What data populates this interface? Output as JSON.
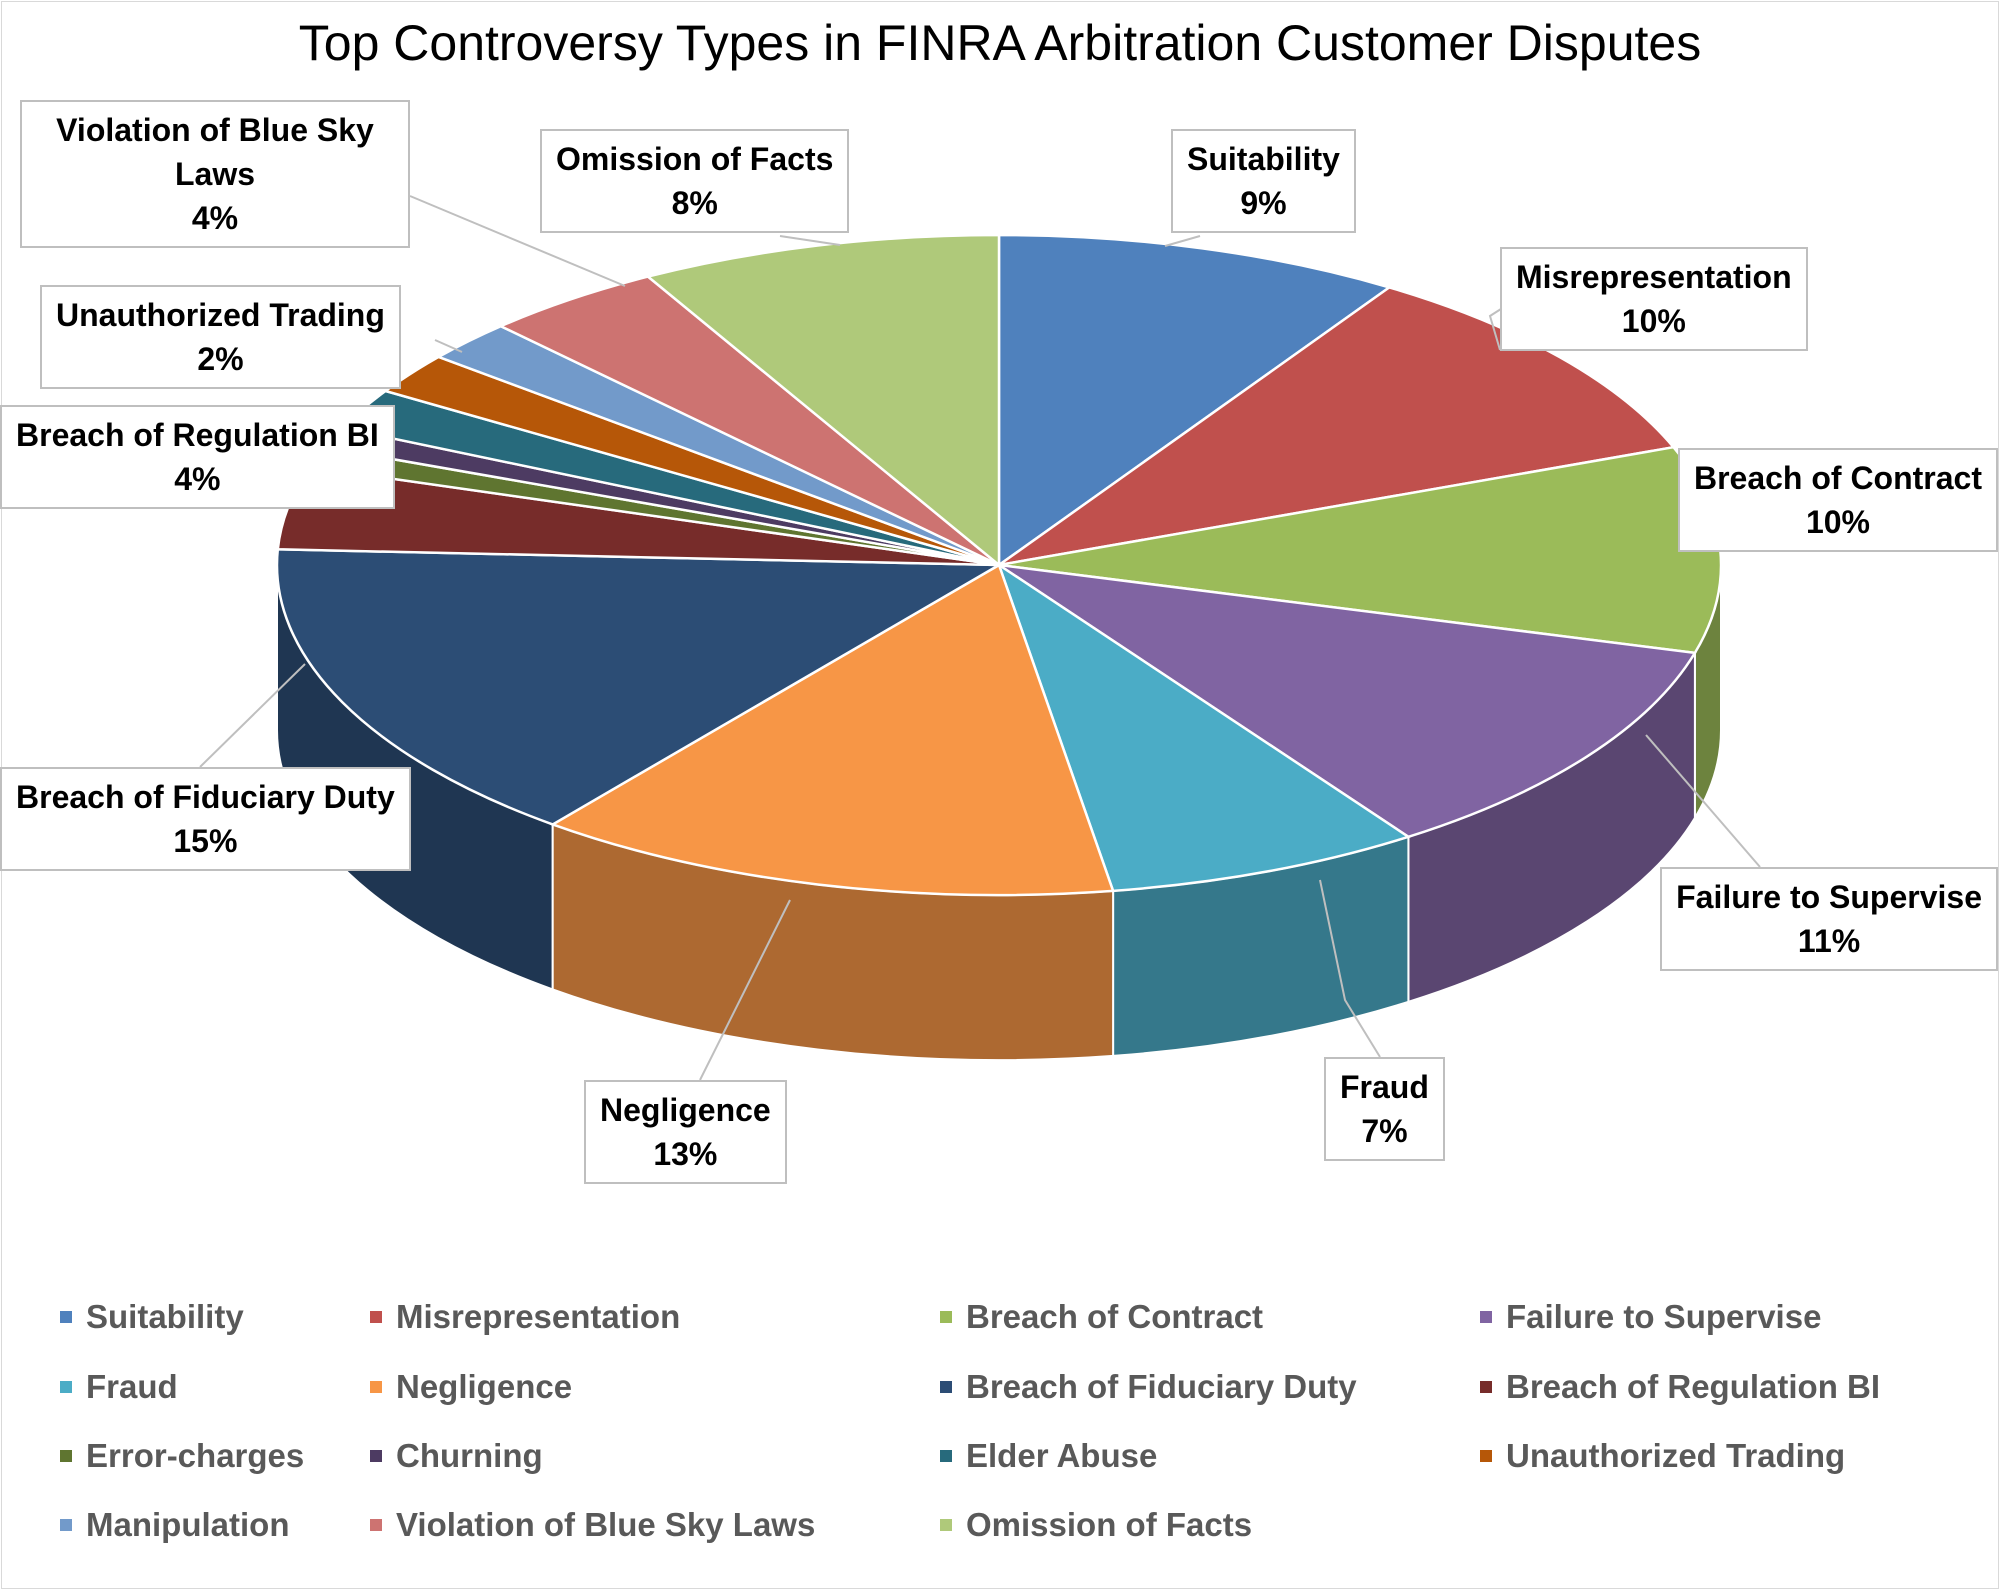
{
  "chart_data": {
    "type": "pie",
    "style": "3d",
    "title": "Top Controversy Types in FINRA Arbitration Customer Disputes",
    "legend_position": "bottom",
    "slices": [
      {
        "name": "Suitability",
        "value": 9,
        "label": "9%",
        "color": "#4F81BD"
      },
      {
        "name": "Misrepresentation",
        "value": 10,
        "label": "10%",
        "color": "#C0504D"
      },
      {
        "name": "Breach of Contract",
        "value": 10,
        "label": "10%",
        "color": "#9BBB59"
      },
      {
        "name": "Failure to Supervise",
        "value": 11,
        "label": "11%",
        "color": "#8064A2"
      },
      {
        "name": "Fraud",
        "value": 7,
        "label": "7%",
        "color": "#4BACC6"
      },
      {
        "name": "Negligence",
        "value": 13,
        "label": "13%",
        "color": "#F79646"
      },
      {
        "name": "Breach of Fiduciary Duty",
        "value": 15,
        "label": "15%",
        "color": "#2C4D75"
      },
      {
        "name": "Breach of Regulation BI",
        "value": 4,
        "label": "4%",
        "color": "#772C2A"
      },
      {
        "name": "Error-charges",
        "value": 1,
        "label": "",
        "color": "#5F7530"
      },
      {
        "name": "Churning",
        "value": 1,
        "label": "",
        "color": "#4D3B62"
      },
      {
        "name": "Elder Abuse",
        "value": 2,
        "label": "",
        "color": "#276A7C"
      },
      {
        "name": "Unauthorized Trading",
        "value": 2,
        "label": "2%",
        "color": "#B65708"
      },
      {
        "name": "Manipulation",
        "value": 2,
        "label": "",
        "color": "#729ACA"
      },
      {
        "name": "Violation of Blue Sky Laws",
        "value": 4,
        "label": "4%",
        "color": "#CD7371"
      },
      {
        "name": "Omission of Facts",
        "value": 8,
        "label": "8%",
        "color": "#AFC97A"
      }
    ]
  }
}
